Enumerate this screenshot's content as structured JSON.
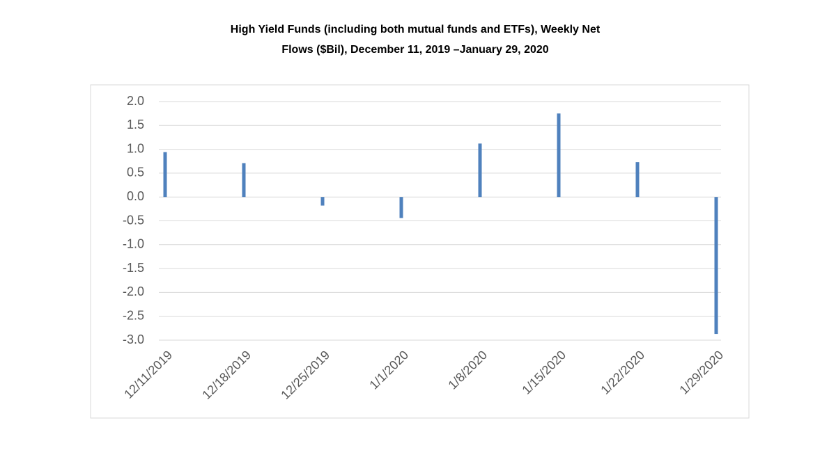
{
  "chart_data": {
    "type": "bar",
    "title": [
      "High Yield Funds (including both mutual funds and ETFs), Weekly Net",
      "Flows ($Bil), December 11, 2019 –January  29, 2020"
    ],
    "categories": [
      "12/11/2019",
      "12/18/2019",
      "12/25/2019",
      "1/1/2020",
      "1/8/2020",
      "1/15/2020",
      "1/22/2020",
      "1/29/2020"
    ],
    "values": [
      0.94,
      0.71,
      -0.18,
      -0.44,
      1.12,
      1.75,
      0.73,
      -2.87
    ],
    "color": "#4f81bd",
    "ylim": [
      -3,
      2
    ],
    "yticks": [
      {
        "value": 2,
        "label": "2.0"
      },
      1.5,
      {
        "value": 1,
        "label": "1.0"
      },
      0.5,
      {
        "value": 0,
        "label": "0.0"
      },
      -0.5,
      {
        "value": -1,
        "label": "-1.0"
      },
      -1.5,
      {
        "value": -2,
        "label": "-2.0"
      },
      -2.5,
      {
        "value": -3,
        "label": "-3.0"
      }
    ],
    "grid": true
  }
}
